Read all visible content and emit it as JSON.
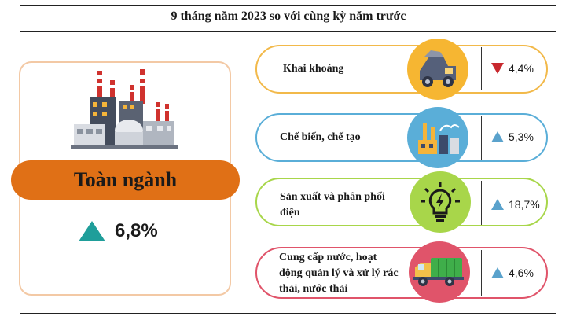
{
  "header": {
    "title": "9 tháng năm 2023 so với cùng kỳ năm trước"
  },
  "summary": {
    "label": "Toàn ngành",
    "value": "6,8%",
    "direction": "up",
    "icon": "factory-icon"
  },
  "sectors": [
    {
      "label": "Khai khoáng",
      "value": "4,4%",
      "direction": "down",
      "icon": "mining-truck-icon"
    },
    {
      "label": "Chế biến, chế tạo",
      "value": "5,3%",
      "direction": "up",
      "icon": "manufacturing-plant-icon"
    },
    {
      "label": "Sản xuất và phân phối điện",
      "value": "18,7%",
      "direction": "up",
      "icon": "lightbulb-icon"
    },
    {
      "label": "Cung cấp nước, hoạt động quản lý và xử lý rác thải, nước thải",
      "value": "4,6%",
      "direction": "up",
      "icon": "garbage-truck-icon"
    }
  ],
  "colors": {
    "accent_orange": "#e07016",
    "up_arrow": "#5aa2cc",
    "up_arrow_big": "#1f9e9a",
    "down_arrow": "#c8282e",
    "mining": "#f6b632",
    "manufacturing": "#5aaed8",
    "electricity": "#a8d64a",
    "water_waste": "#e0546a"
  }
}
